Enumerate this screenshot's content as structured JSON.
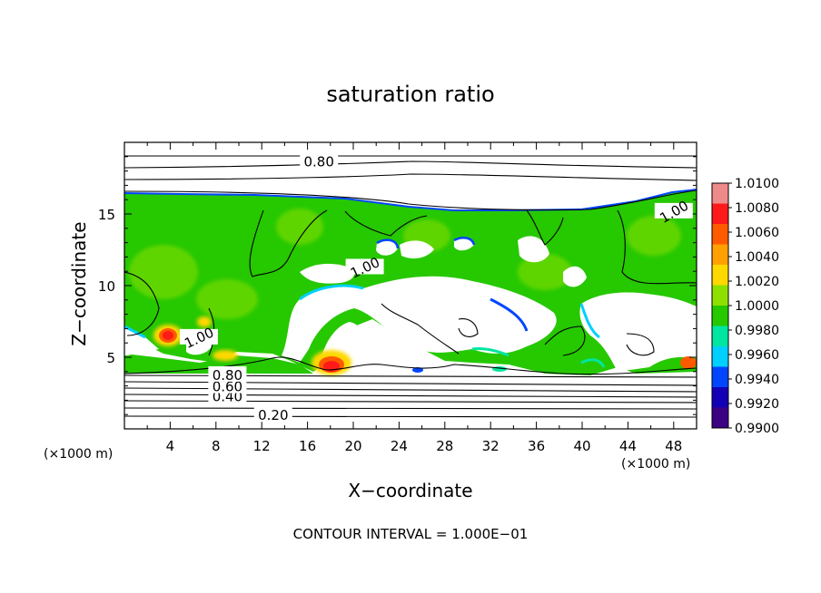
{
  "chart_data": {
    "type": "heatmap",
    "title": "saturation ratio",
    "xlabel": "X−coordinate",
    "ylabel": "Z−coordinate",
    "x_unit_left": "(×1000 m)",
    "x_unit_right": "(×1000 m)",
    "xlim": [
      0,
      50
    ],
    "ylim": [
      0,
      20
    ],
    "x_ticks": [
      4,
      8,
      12,
      16,
      20,
      24,
      28,
      32,
      36,
      40,
      44,
      48
    ],
    "x_tick_labels": [
      "4",
      "8",
      "12",
      "16",
      "20",
      "24",
      "28",
      "32",
      "36",
      "40",
      "44",
      "48"
    ],
    "y_ticks": [
      5,
      10,
      15
    ],
    "y_tick_labels": [
      "5",
      "10",
      "15"
    ],
    "colorbar": {
      "min": 0.99,
      "max": 1.01,
      "labels": [
        "1.0100",
        "1.0080",
        "1.0060",
        "1.0040",
        "1.0020",
        "1.0000",
        "0.9980",
        "0.9960",
        "0.9940",
        "0.9920",
        "0.9900"
      ],
      "colors": [
        "#ef8a8a",
        "#ff1a1a",
        "#ff5a00",
        "#ffa000",
        "#ffd800",
        "#8ee000",
        "#26c800",
        "#00e6a0",
        "#00d0ff",
        "#0046ff",
        "#1400b4",
        "#3c0082"
      ]
    },
    "contours": [
      {
        "label": "0.20",
        "z_level": 1.0
      },
      {
        "label": "0.40",
        "z_level": 2.3
      },
      {
        "label": "0.60",
        "z_level": 3.0
      },
      {
        "label": "0.80",
        "z_level": 3.8
      },
      {
        "label": "0.80",
        "z_level": 18.7
      },
      {
        "label": "1.00",
        "z_level": 15.2
      },
      {
        "label": "1.00",
        "z_level": 11.3
      },
      {
        "label": "1.00",
        "z_level": 6.4
      }
    ],
    "contour_interval_text": "CONTOUR INTERVAL = 1.000E−01",
    "grid": false,
    "legend": "right-colorbar"
  }
}
